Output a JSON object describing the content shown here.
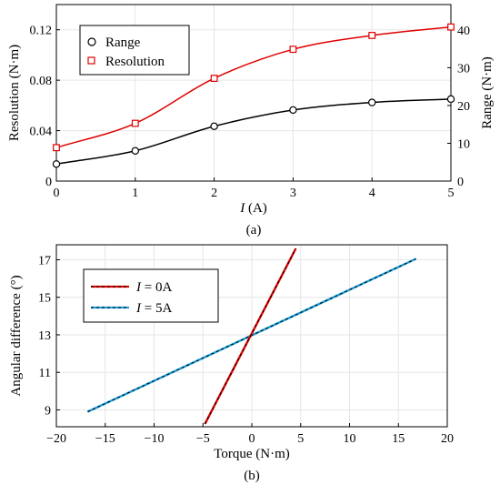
{
  "chart_data": [
    {
      "type": "line",
      "panel_label": "(a)",
      "xlabel_var": "I",
      "xlabel_unit": " (A)",
      "ylabel_left": "Resolution (N·m)",
      "ylabel_right": "Range (N·m)",
      "xlim": [
        0,
        5
      ],
      "ylim_left": [
        0,
        0.14
      ],
      "ylim_right": [
        0,
        46.7
      ],
      "x_ticks": [
        0,
        1,
        2,
        3,
        4,
        5
      ],
      "y_left_ticks": [
        "0",
        "0.04",
        "0.08",
        "0.12"
      ],
      "y_left_tick_values": [
        0,
        0.04,
        0.08,
        0.12
      ],
      "y_right_ticks": [
        "0",
        "10",
        "20",
        "30",
        "40"
      ],
      "y_right_tick_values": [
        0,
        10,
        20,
        30,
        40
      ],
      "grid": true,
      "legend_position": "top-left",
      "series": [
        {
          "name": "Range",
          "axis": "right",
          "color": "#000000",
          "marker": "circle",
          "x": [
            0,
            1,
            2,
            3,
            4,
            5
          ],
          "y": [
            4.5,
            8,
            14.5,
            18.8,
            20.8,
            21.7
          ]
        },
        {
          "name": "Resolution",
          "axis": "left",
          "color": "#e00000",
          "marker": "square",
          "x": [
            0,
            1,
            2,
            3,
            4,
            5
          ],
          "y": [
            0.0265,
            0.0458,
            0.0815,
            0.1045,
            0.1155,
            0.1222
          ]
        }
      ]
    },
    {
      "type": "line",
      "panel_label": "(b)",
      "xlabel": "Torque (N·m)",
      "ylabel": "Angular difference (°)",
      "xlim": [
        -20,
        20
      ],
      "ylim": [
        8.1,
        17.8
      ],
      "x_ticks": [
        "−20",
        "−15",
        "−10",
        "−5",
        "0",
        "5",
        "10",
        "15",
        "20"
      ],
      "x_tick_values": [
        -20,
        -15,
        -10,
        -5,
        0,
        5,
        10,
        15,
        20
      ],
      "y_ticks": [
        "9",
        "11",
        "13",
        "15",
        "17"
      ],
      "y_tick_values": [
        9,
        11,
        13,
        15,
        17
      ],
      "grid": true,
      "legend_position": "top-left",
      "series": [
        {
          "name_var": "I",
          "name_rest": " = 0A",
          "color": "#e00000",
          "style": "solid-dashed-black",
          "x": [
            -4.8,
            4.5
          ],
          "y": [
            8.25,
            17.6
          ]
        },
        {
          "name_var": "I",
          "name_rest": " = 5A",
          "color": "#1ea0dc",
          "style": "solid-dashed-black",
          "x": [
            -16.8,
            16.8
          ],
          "y": [
            8.9,
            17.05
          ]
        }
      ]
    }
  ]
}
